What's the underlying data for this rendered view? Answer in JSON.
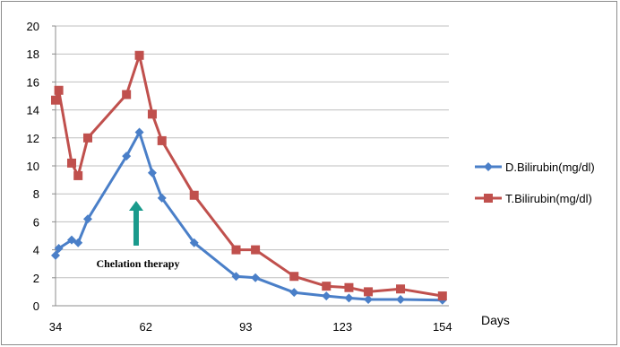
{
  "chart_data": {
    "type": "line",
    "title": "",
    "xlabel": "Days",
    "ylabel": "",
    "xlim": [
      34,
      156
    ],
    "ylim": [
      0,
      20
    ],
    "x_ticks": [
      34,
      62,
      93,
      123,
      154
    ],
    "y_ticks": [
      0,
      2,
      4,
      6,
      8,
      10,
      12,
      14,
      16,
      18,
      20
    ],
    "grid": "horizontal",
    "legend_position": "right",
    "annotation": {
      "text": "Chelation therapy",
      "x": 59,
      "y_from": 4.3,
      "y_to": 7.5,
      "color": "#1a9a8c"
    },
    "series": [
      {
        "name": "D.Bilirubin(mg/dl)",
        "color": "#4a7fc8",
        "marker": "diamond",
        "points": [
          [
            34,
            3.6
          ],
          [
            35,
            4.1
          ],
          [
            39,
            4.7
          ],
          [
            41,
            4.5
          ],
          [
            44,
            6.2
          ],
          [
            56,
            10.7
          ],
          [
            60,
            12.4
          ],
          [
            64,
            9.5
          ],
          [
            67,
            7.7
          ],
          [
            77,
            4.5
          ],
          [
            90,
            2.1
          ],
          [
            96,
            2.0
          ],
          [
            108,
            0.95
          ],
          [
            118,
            0.7
          ],
          [
            125,
            0.55
          ],
          [
            131,
            0.45
          ],
          [
            141,
            0.45
          ],
          [
            154,
            0.4
          ]
        ]
      },
      {
        "name": "T.Bilirubin(mg/dl)",
        "color": "#c0504d",
        "marker": "square",
        "points": [
          [
            34,
            14.7
          ],
          [
            35,
            15.4
          ],
          [
            39,
            10.2
          ],
          [
            41,
            9.3
          ],
          [
            44,
            12.0
          ],
          [
            56,
            15.1
          ],
          [
            60,
            17.9
          ],
          [
            64,
            13.7
          ],
          [
            67,
            11.8
          ],
          [
            77,
            7.9
          ],
          [
            90,
            4.0
          ],
          [
            96,
            4.0
          ],
          [
            108,
            2.1
          ],
          [
            118,
            1.4
          ],
          [
            125,
            1.3
          ],
          [
            131,
            1.0
          ],
          [
            141,
            1.2
          ],
          [
            154,
            0.7
          ]
        ]
      }
    ]
  }
}
